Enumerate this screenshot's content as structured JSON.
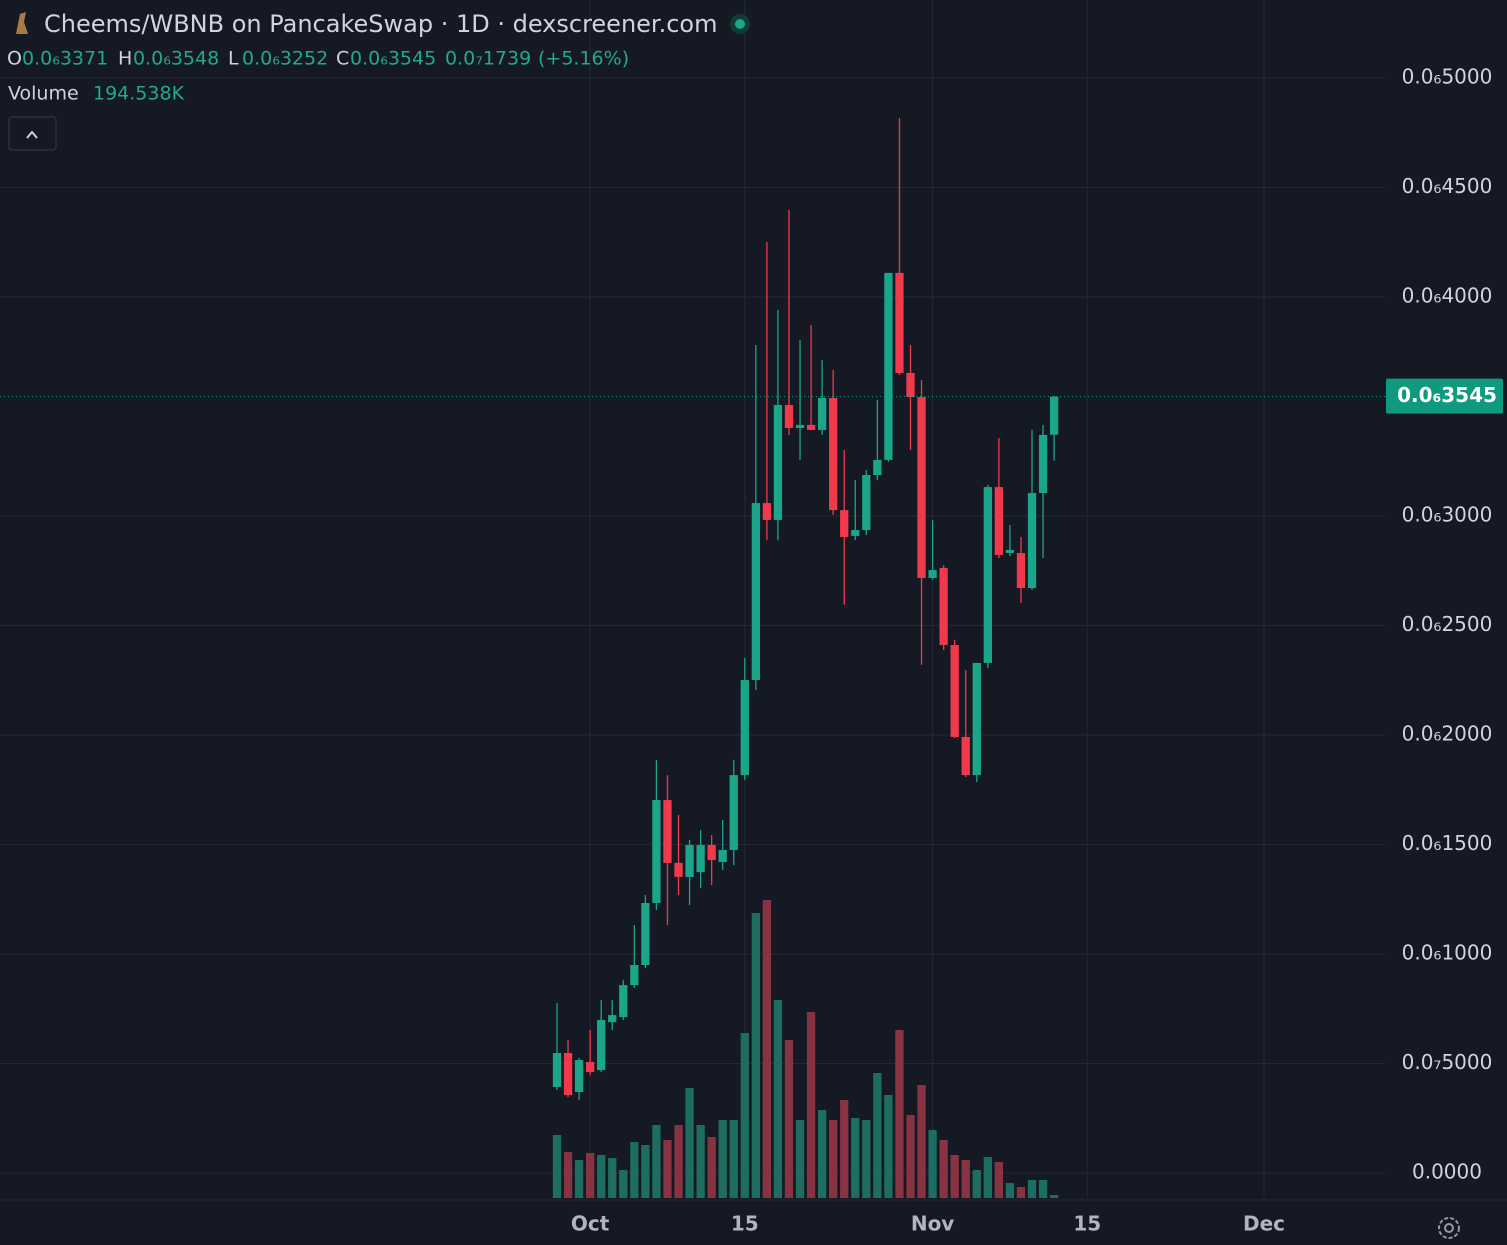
{
  "chart_data": {
    "type": "candlestick",
    "title": "Cheems/WBNB on PancakeSwap · 1D · dexscreener.com",
    "header": {
      "ohlc": [
        {
          "key": "O",
          "text": "0.0₆3371"
        },
        {
          "key": "H",
          "text": "0.0₆3548"
        },
        {
          "key": "L",
          "text": "0.0₆3252"
        },
        {
          "key": "C",
          "text": "0.0₆3545"
        }
      ],
      "change": "0.0₇1739",
      "change_pct": "(+5.16%)",
      "volume_label": "Volume",
      "volume_value": "194.538K"
    },
    "up_color": "#1ba689",
    "down_color": "#f0394a",
    "up_volume_color": "#1d6d60",
    "down_volume_color": "#873341",
    "grid": true,
    "categories": [
      null,
      null,
      null,
      "Oct",
      null,
      null,
      null,
      null,
      null,
      null,
      null,
      null,
      null,
      null,
      null,
      null,
      null,
      "15",
      null,
      null,
      null,
      null,
      null,
      null,
      null,
      null,
      null,
      null,
      null,
      null,
      null,
      null,
      null,
      null,
      "Nov",
      null,
      null,
      null,
      null,
      null,
      null,
      null,
      null,
      null,
      null,
      null,
      null,
      null,
      "15",
      null,
      null,
      null,
      null,
      null,
      null,
      null,
      null,
      null,
      null,
      null,
      null,
      null,
      null,
      null,
      "Dec"
    ],
    "open": [
      3.93e-08,
      5.48e-08,
      3.7e-08,
      5.07e-08,
      4.7e-08,
      6.89e-08,
      7.12e-08,
      8.58e-08,
      9.5e-08,
      1.233e-07,
      1.703e-07,
      1.416e-07,
      1.352e-07,
      1.374e-07,
      1.498e-07,
      1.42e-07,
      1.475e-07,
      1.817e-07,
      2.251e-07,
      3.059e-07,
      2.982e-07,
      3.507e-07,
      3.402e-07,
      3.416e-07,
      3.393e-07,
      3.539e-07,
      3.027e-07,
      2.909e-07,
      2.936e-07,
      3.187e-07,
      3.256e-07,
      4.11e-07,
      3.653e-07,
      3.543e-07,
      2.717e-07,
      2.763e-07,
      2.411e-07,
      1.991e-07,
      1.817e-07,
      2.329e-07,
      3.132e-07,
      2.831e-07,
      2.831e-07,
      2.671e-07,
      3.105e-07,
      3.371e-07,
      null,
      null,
      null,
      null,
      null,
      null,
      null,
      null,
      null,
      null,
      null,
      null,
      null,
      null,
      null,
      null,
      null,
      null,
      null
    ],
    "high": [
      7.76e-08,
      6.07e-08,
      5.25e-08,
      6.53e-08,
      7.9e-08,
      7.9e-08,
      8.81e-08,
      1.132e-07,
      1.269e-07,
      1.886e-07,
      1.817e-07,
      1.635e-07,
      1.521e-07,
      1.566e-07,
      1.543e-07,
      1.612e-07,
      1.886e-07,
      2.352e-07,
      3.781e-07,
      4.251e-07,
      3.941e-07,
      4.397e-07,
      3.804e-07,
      3.872e-07,
      3.712e-07,
      3.667e-07,
      3.301e-07,
      3.164e-07,
      3.21e-07,
      3.53e-07,
      4.11e-07,
      4.817e-07,
      3.781e-07,
      3.621e-07,
      2.982e-07,
      2.776e-07,
      2.434e-07,
      2.297e-07,
      2.329e-07,
      3.142e-07,
      3.356e-07,
      2.959e-07,
      2.904e-07,
      3.393e-07,
      3.416e-07,
      3.548e-07,
      null,
      null,
      null,
      null,
      null,
      null,
      null,
      null,
      null,
      null,
      null,
      null,
      null,
      null,
      null,
      null,
      null,
      null,
      null
    ],
    "low": [
      3.79e-08,
      3.47e-08,
      3.33e-08,
      4.47e-08,
      4.61e-08,
      6.53e-08,
      6.99e-08,
      8.45e-08,
      9.36e-08,
      1.201e-07,
      1.132e-07,
      1.269e-07,
      1.224e-07,
      1.301e-07,
      1.315e-07,
      1.384e-07,
      1.406e-07,
      1.795e-07,
      2.205e-07,
      2.89e-07,
      2.89e-07,
      3.37e-07,
      3.256e-07,
      3.393e-07,
      3.37e-07,
      3.005e-07,
      2.594e-07,
      2.89e-07,
      2.913e-07,
      3.164e-07,
      3.247e-07,
      3.644e-07,
      3.301e-07,
      2.32e-07,
      2.708e-07,
      2.388e-07,
      1.986e-07,
      1.808e-07,
      1.785e-07,
      2.306e-07,
      2.808e-07,
      2.817e-07,
      2.603e-07,
      2.662e-07,
      2.808e-07,
      3.252e-07,
      null,
      null,
      null,
      null,
      null,
      null,
      null,
      null,
      null,
      null,
      null,
      null,
      null,
      null,
      null,
      null,
      null,
      null,
      null
    ],
    "close": [
      5.48e-08,
      3.56e-08,
      5.16e-08,
      4.61e-08,
      6.99e-08,
      7.21e-08,
      8.58e-08,
      9.5e-08,
      1.233e-07,
      1.703e-07,
      1.416e-07,
      1.352e-07,
      1.498e-07,
      1.498e-07,
      1.429e-07,
      1.475e-07,
      1.817e-07,
      2.251e-07,
      3.059e-07,
      2.982e-07,
      3.507e-07,
      3.402e-07,
      3.416e-07,
      3.393e-07,
      3.539e-07,
      3.027e-07,
      2.904e-07,
      2.936e-07,
      3.187e-07,
      3.256e-07,
      4.11e-07,
      3.653e-07,
      3.543e-07,
      2.717e-07,
      2.753e-07,
      2.411e-07,
      1.991e-07,
      1.817e-07,
      2.329e-07,
      3.132e-07,
      2.822e-07,
      2.845e-07,
      2.671e-07,
      3.105e-07,
      3.37e-07,
      3.545e-07,
      null,
      null,
      null,
      null,
      null,
      null,
      null,
      null,
      null,
      null,
      null,
      null,
      null,
      null,
      null,
      null,
      null,
      null,
      null
    ],
    "volume": [
      4095000,
      2990000,
      2470000,
      2925000,
      2795000,
      2600000,
      1820000,
      3640000,
      3445000,
      4745000,
      3770000,
      4745000,
      7150000,
      4745000,
      3965000,
      5070000,
      5070000,
      10725000,
      18525000,
      19370000,
      12870000,
      10270000,
      5070000,
      12090000,
      5720000,
      5070000,
      6370000,
      5200000,
      5070000,
      8125000,
      6695000,
      10920000,
      5395000,
      7345000,
      4420000,
      3770000,
      2795000,
      2470000,
      1820000,
      2665000,
      2340000,
      975000,
      715000,
      1170000,
      1170000,
      194538,
      null,
      null,
      null,
      null,
      null,
      null,
      null,
      null,
      null,
      null,
      null,
      null,
      null,
      null,
      null,
      null,
      null,
      null,
      null
    ],
    "last_price": {
      "value": 3.545e-07,
      "label": "0.0₆3545"
    },
    "ylim": [
      -1.14e-08,
      5.356e-07
    ],
    "yticks": [
      {
        "value": 0,
        "label": "0.0000"
      },
      {
        "value": 5e-08,
        "label": "0.0₇5000"
      },
      {
        "value": 1e-07,
        "label": "0.0₆1000"
      },
      {
        "value": 1.5e-07,
        "label": "0.0₆1500"
      },
      {
        "value": 2e-07,
        "label": "0.0₆2000"
      },
      {
        "value": 2.5e-07,
        "label": "0.0₆2500"
      },
      {
        "value": 3e-07,
        "label": "0.0₆3000"
      },
      {
        "value": 4e-07,
        "label": "0.0₆4000"
      },
      {
        "value": 4.5e-07,
        "label": "0.0₆4500"
      },
      {
        "value": 5e-07,
        "label": "0.0₆5000"
      }
    ]
  }
}
